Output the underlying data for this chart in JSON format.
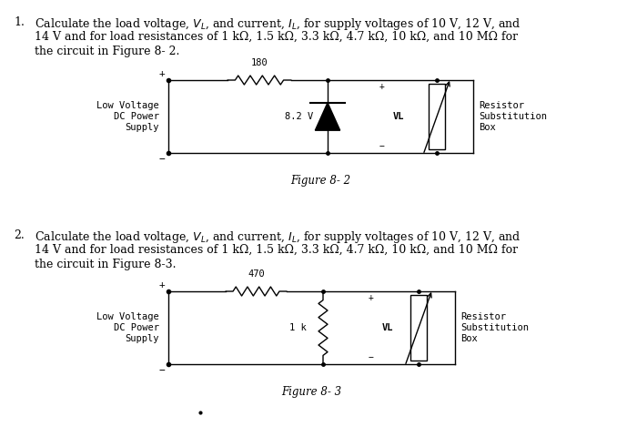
{
  "background_color": "#ffffff",
  "fig_width": 7.0,
  "fig_height": 4.8,
  "p1_line1": "Calculate the load voltage, $V_L$, and current, $I_L$, for supply voltages of 10 V, 12 V, and",
  "p1_line2": "14 V and for load resistances of 1 kΩ, 1.5 kΩ, 3.3 kΩ, 4.7 kΩ, 10 kΩ, and 10 MΩ for",
  "p1_line3": "the circuit in Figure 8- 2.",
  "p2_line1": "Calculate the load voltage, $V_L$, and current, $I_L$, for supply voltages of 10 V, 12 V, and",
  "p2_line2": "14 V and for load resistances of 1 kΩ, 1.5 kΩ, 3.3 kΩ, 4.7 kΩ, 10 kΩ, and 10 MΩ for",
  "p2_line3": "the circuit in Figure 8-3.",
  "fig1_caption": "Figure 8- 2",
  "fig2_caption": "Figure 8- 3",
  "fig1_res_label": "180",
  "fig1_volt_label": "8.2 V",
  "fig1_vl_label": "VL",
  "fig2_res_label": "470",
  "fig2_1k_label": "1 k",
  "fig2_vl_label": "VL",
  "left_label": [
    "Low Voltage",
    "DC Power",
    "Supply"
  ],
  "right_label": [
    "Resistor",
    "Substitution",
    "Box"
  ]
}
